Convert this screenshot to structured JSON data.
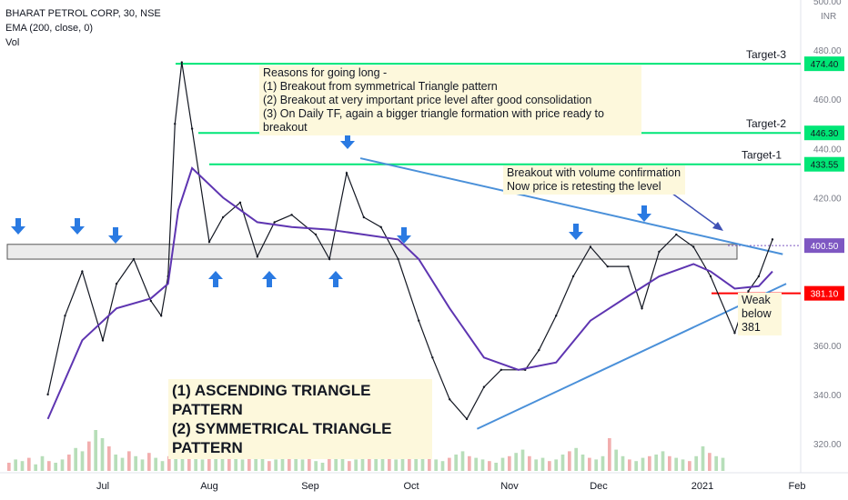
{
  "header": {
    "symbol_line": "BHARAT PETROL CORP, 30, NSE",
    "indicator_line": "EMA (200, close, 0)",
    "volume_line": "Vol"
  },
  "currency_label": "INR",
  "chart_data": {
    "type": "line",
    "title": "BHARAT PETROL CORP, 30, NSE",
    "ylim": [
      314,
      505
    ],
    "y_ticks": [
      320,
      340,
      360,
      380,
      400,
      420,
      440,
      460,
      480,
      500
    ],
    "x_ticks": [
      "Jul",
      "Aug",
      "Sep",
      "Oct",
      "Nov",
      "Dec",
      "2021",
      "Feb"
    ],
    "series": [
      {
        "name": "BHARAT PETROL CORP, 30, NSE",
        "x": [
          "Jun 15",
          "Jun 20",
          "Jun 25",
          "Jul 1",
          "Jul 5",
          "Jul 10",
          "Jul 15",
          "Jul 18",
          "Jul 20",
          "Jul 22",
          "Jul 24",
          "Jul 27",
          "Aug 1",
          "Aug 5",
          "Aug 10",
          "Aug 15",
          "Aug 20",
          "Aug 25",
          "Sep 1",
          "Sep 5",
          "Sep 10",
          "Sep 15",
          "Sep 20",
          "Sep 25",
          "Oct 1",
          "Oct 5",
          "Oct 10",
          "Oct 15",
          "Oct 20",
          "Oct 25",
          "Nov 1",
          "Nov 5",
          "Nov 10",
          "Nov 15",
          "Nov 20",
          "Nov 25",
          "Dec 1",
          "Dec 5",
          "Dec 10",
          "Dec 15",
          "Dec 20",
          "Dec 25",
          "Jan 1",
          "Jan 5",
          "Jan 8",
          "Jan 12"
        ],
        "values": [
          340,
          372,
          390,
          362,
          385,
          395,
          378,
          372,
          388,
          450,
          475,
          448,
          402,
          412,
          418,
          396,
          410,
          413,
          405,
          395,
          430,
          412,
          408,
          395,
          370,
          355,
          338,
          330,
          343,
          350,
          350,
          358,
          372,
          388,
          400,
          392,
          392,
          375,
          398,
          405,
          400,
          388,
          365,
          382,
          388,
          403
        ]
      },
      {
        "name": "EMA (200, close, 0)",
        "x": [
          "Jun 15",
          "Jun 25",
          "Jul 5",
          "Jul 15",
          "Jul 20",
          "Jul 23",
          "Jul 27",
          "Aug 5",
          "Aug 15",
          "Aug 25",
          "Sep 5",
          "Sep 15",
          "Sep 25",
          "Oct 1",
          "Oct 10",
          "Oct 20",
          "Oct 30",
          "Nov 10",
          "Nov 20",
          "Dec 1",
          "Dec 10",
          "Dec 20",
          "Dec 25",
          "Jan 1",
          "Jan 8",
          "Jan 12"
        ],
        "values": [
          330,
          362,
          375,
          379,
          385,
          415,
          432,
          420,
          410,
          408,
          407,
          405,
          403,
          395,
          375,
          355,
          350,
          353,
          370,
          380,
          388,
          393,
          390,
          383,
          384,
          390
        ]
      }
    ],
    "volume": {
      "name": "Vol",
      "values": [
        5,
        7,
        6,
        8,
        4,
        9,
        6,
        5,
        7,
        10,
        14,
        12,
        18,
        25,
        20,
        15,
        10,
        8,
        12,
        9,
        7,
        11,
        8,
        6,
        9,
        13,
        16,
        10,
        8,
        7,
        9,
        12,
        14,
        10,
        8,
        7,
        9,
        11,
        8,
        6,
        7,
        10,
        22,
        9,
        7,
        8,
        6,
        5,
        9,
        12,
        8,
        6,
        7,
        9,
        16,
        20,
        12,
        9,
        7,
        8,
        10,
        11,
        14,
        9,
        7,
        6,
        8,
        10,
        12,
        9,
        8,
        7,
        6,
        5,
        8,
        9,
        11,
        13,
        9,
        7,
        8,
        6,
        7,
        10,
        12,
        14,
        10,
        8,
        7,
        9,
        20,
        13,
        9,
        7,
        6,
        8,
        9,
        10,
        12,
        9,
        8,
        7,
        6,
        9,
        15,
        11,
        9,
        8
      ]
    },
    "horizontal_levels": [
      {
        "label": "Target-3",
        "value": 474.4,
        "value_text": "474.40",
        "color": "#00e676"
      },
      {
        "label": "Target-2",
        "value": 446.3,
        "value_text": "446.30",
        "color": "#00e676"
      },
      {
        "label": "Target-1",
        "value": 433.55,
        "value_text": "433.55",
        "color": "#00e676"
      },
      {
        "label": "",
        "value": 381.1,
        "value_text": "381.10",
        "color": "#ff0000"
      }
    ],
    "last_price": {
      "value": 400.5,
      "value_text": "400.50",
      "color": "#7e57c2"
    },
    "resistance_zone": [
      395,
      401
    ],
    "trend_lines": [
      {
        "from": [
          "Sep 14",
          436
        ],
        "to": [
          "Jan 15",
          397
        ],
        "color": "#4a90d9"
      },
      {
        "from": [
          "Oct 18",
          326
        ],
        "to": [
          "Jan 16",
          385
        ],
        "color": "#4a90d9"
      }
    ],
    "annotations": {
      "reasons": [
        "Reasons for going long -",
        "(1) Breakout from symmetrical Triangle pattern",
        "(2) Breakout at very important price level after good consolidation",
        "(3) On Daily TF, again a bigger triangle formation with price ready to breakout"
      ],
      "breakout": [
        "Breakout with volume confirmation",
        "Now price is retesting the level"
      ],
      "weak": [
        "Weak",
        "below",
        "381"
      ],
      "patterns": [
        "(1) ASCENDING TRIANGLE PATTERN",
        "(2) SYMMETRICAL TRIANGLE PATTERN"
      ]
    },
    "colors": {
      "price": "#131722",
      "ema": "#5e35b1",
      "up_volume": "#a5d6a7",
      "down_volume": "#ef9a9a",
      "arrow": "#2a7ae2",
      "target_line": "#00e676",
      "stop_line": "#ff0000"
    }
  }
}
